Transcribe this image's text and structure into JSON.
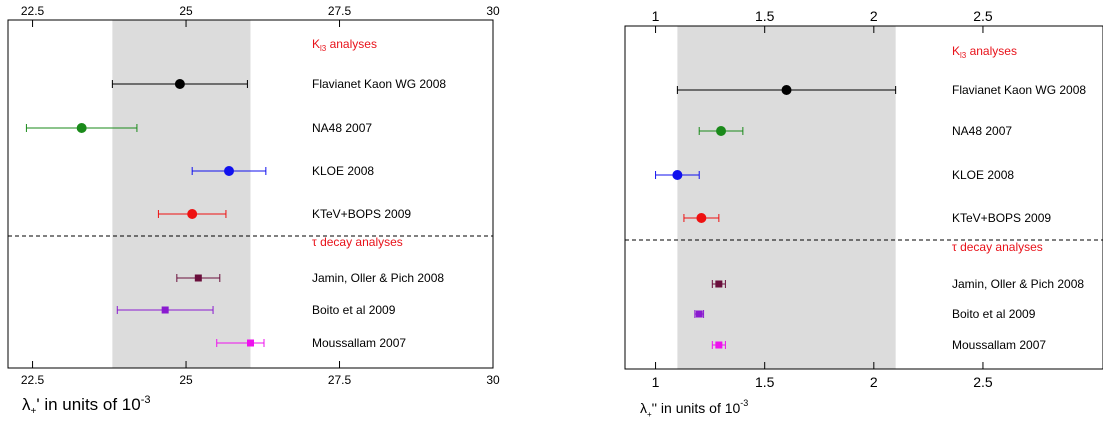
{
  "chart_data": [
    {
      "type": "scatter",
      "title": "",
      "xlabel_main": "λ",
      "xlabel_sub": "+",
      "xlabel_tail": "' in units of 10",
      "xlabel_exp": "-3",
      "xlim": [
        22.1,
        30
      ],
      "ticks": [
        22.5,
        25,
        27.5,
        30
      ],
      "tick_labels": [
        "22.5",
        "25",
        "27.5",
        "30"
      ],
      "band": [
        23.8,
        26.05
      ],
      "band_color": "#dcdcdc",
      "section_headers": [
        {
          "main": "K",
          "sub": "l3",
          "tail": " analyses",
          "color": "#e8121a"
        },
        {
          "main": "τ decay analyses",
          "sub": "",
          "tail": "",
          "color": "#e8121a"
        }
      ],
      "series": [
        {
          "name": "Flavianet Kaon WG 2008",
          "y": 24.9,
          "err_low": 1.1,
          "err_high": 1.1,
          "color": "#000000",
          "marker": "circle"
        },
        {
          "name": "NA48 2007",
          "y": 23.3,
          "err_low": 0.9,
          "err_high": 0.9,
          "color": "#1a8a1a",
          "marker": "circle"
        },
        {
          "name": "KLOE 2008",
          "y": 25.7,
          "err_low": 0.6,
          "err_high": 0.6,
          "color": "#1111ee",
          "marker": "circle"
        },
        {
          "name": "KTeV+BOPS 2009",
          "y": 25.1,
          "err_low": 0.55,
          "err_high": 0.55,
          "color": "#ee1111",
          "marker": "circle"
        },
        {
          "name": "Jamin, Oller & Pich 2008",
          "y": 25.2,
          "err_low": 0.35,
          "err_high": 0.35,
          "color": "#6a0f3c",
          "marker": "square"
        },
        {
          "name": "Boito et al 2009",
          "y": 24.66,
          "err_low": 0.78,
          "err_high": 0.78,
          "color": "#8a1ad0",
          "marker": "square"
        },
        {
          "name": "Moussallam 2007",
          "y": 26.05,
          "err_low": 0.55,
          "err_high": 0.22,
          "color": "#ee11ee",
          "marker": "square"
        }
      ]
    },
    {
      "type": "scatter",
      "title": "",
      "xlabel_main": "λ",
      "xlabel_sub": "+",
      "xlabel_tail": "'' in units of 10",
      "xlabel_exp": "-3",
      "xlim": [
        0.86,
        3.05
      ],
      "ticks": [
        1,
        1.5,
        2,
        2.5
      ],
      "tick_labels": [
        "1",
        "1.5",
        "2",
        "2.5"
      ],
      "band": [
        1.1,
        2.1
      ],
      "band_color": "#dcdcdc",
      "section_headers": [
        {
          "main": "K",
          "sub": "l3",
          "tail": " analyses",
          "color": "#e8121a"
        },
        {
          "main": "τ decay analyses",
          "sub": "",
          "tail": "",
          "color": "#e8121a"
        }
      ],
      "series": [
        {
          "name": "Flavianet Kaon WG 2008",
          "y": 1.6,
          "err_low": 0.5,
          "err_high": 0.5,
          "color": "#000000",
          "marker": "circle"
        },
        {
          "name": "NA48 2007",
          "y": 1.3,
          "err_low": 0.1,
          "err_high": 0.1,
          "color": "#1a8a1a",
          "marker": "circle"
        },
        {
          "name": "KLOE 2008",
          "y": 1.1,
          "err_low": 0.1,
          "err_high": 0.1,
          "color": "#1111ee",
          "marker": "circle"
        },
        {
          "name": "KTeV+BOPS 2009",
          "y": 1.21,
          "err_low": 0.08,
          "err_high": 0.08,
          "color": "#ee1111",
          "marker": "circle"
        },
        {
          "name": "Jamin, Oller & Pich 2008",
          "y": 1.29,
          "err_low": 0.03,
          "err_high": 0.03,
          "color": "#6a0f3c",
          "marker": "square"
        },
        {
          "name": "Boito et al 2009",
          "y": 1.2,
          "err_low": 0.02,
          "err_high": 0.02,
          "color": "#8a1ad0",
          "marker": "square"
        },
        {
          "name": "Moussallam 2007",
          "y": 1.29,
          "err_low": 0.03,
          "err_high": 0.03,
          "color": "#ee11ee",
          "marker": "square"
        }
      ]
    }
  ]
}
